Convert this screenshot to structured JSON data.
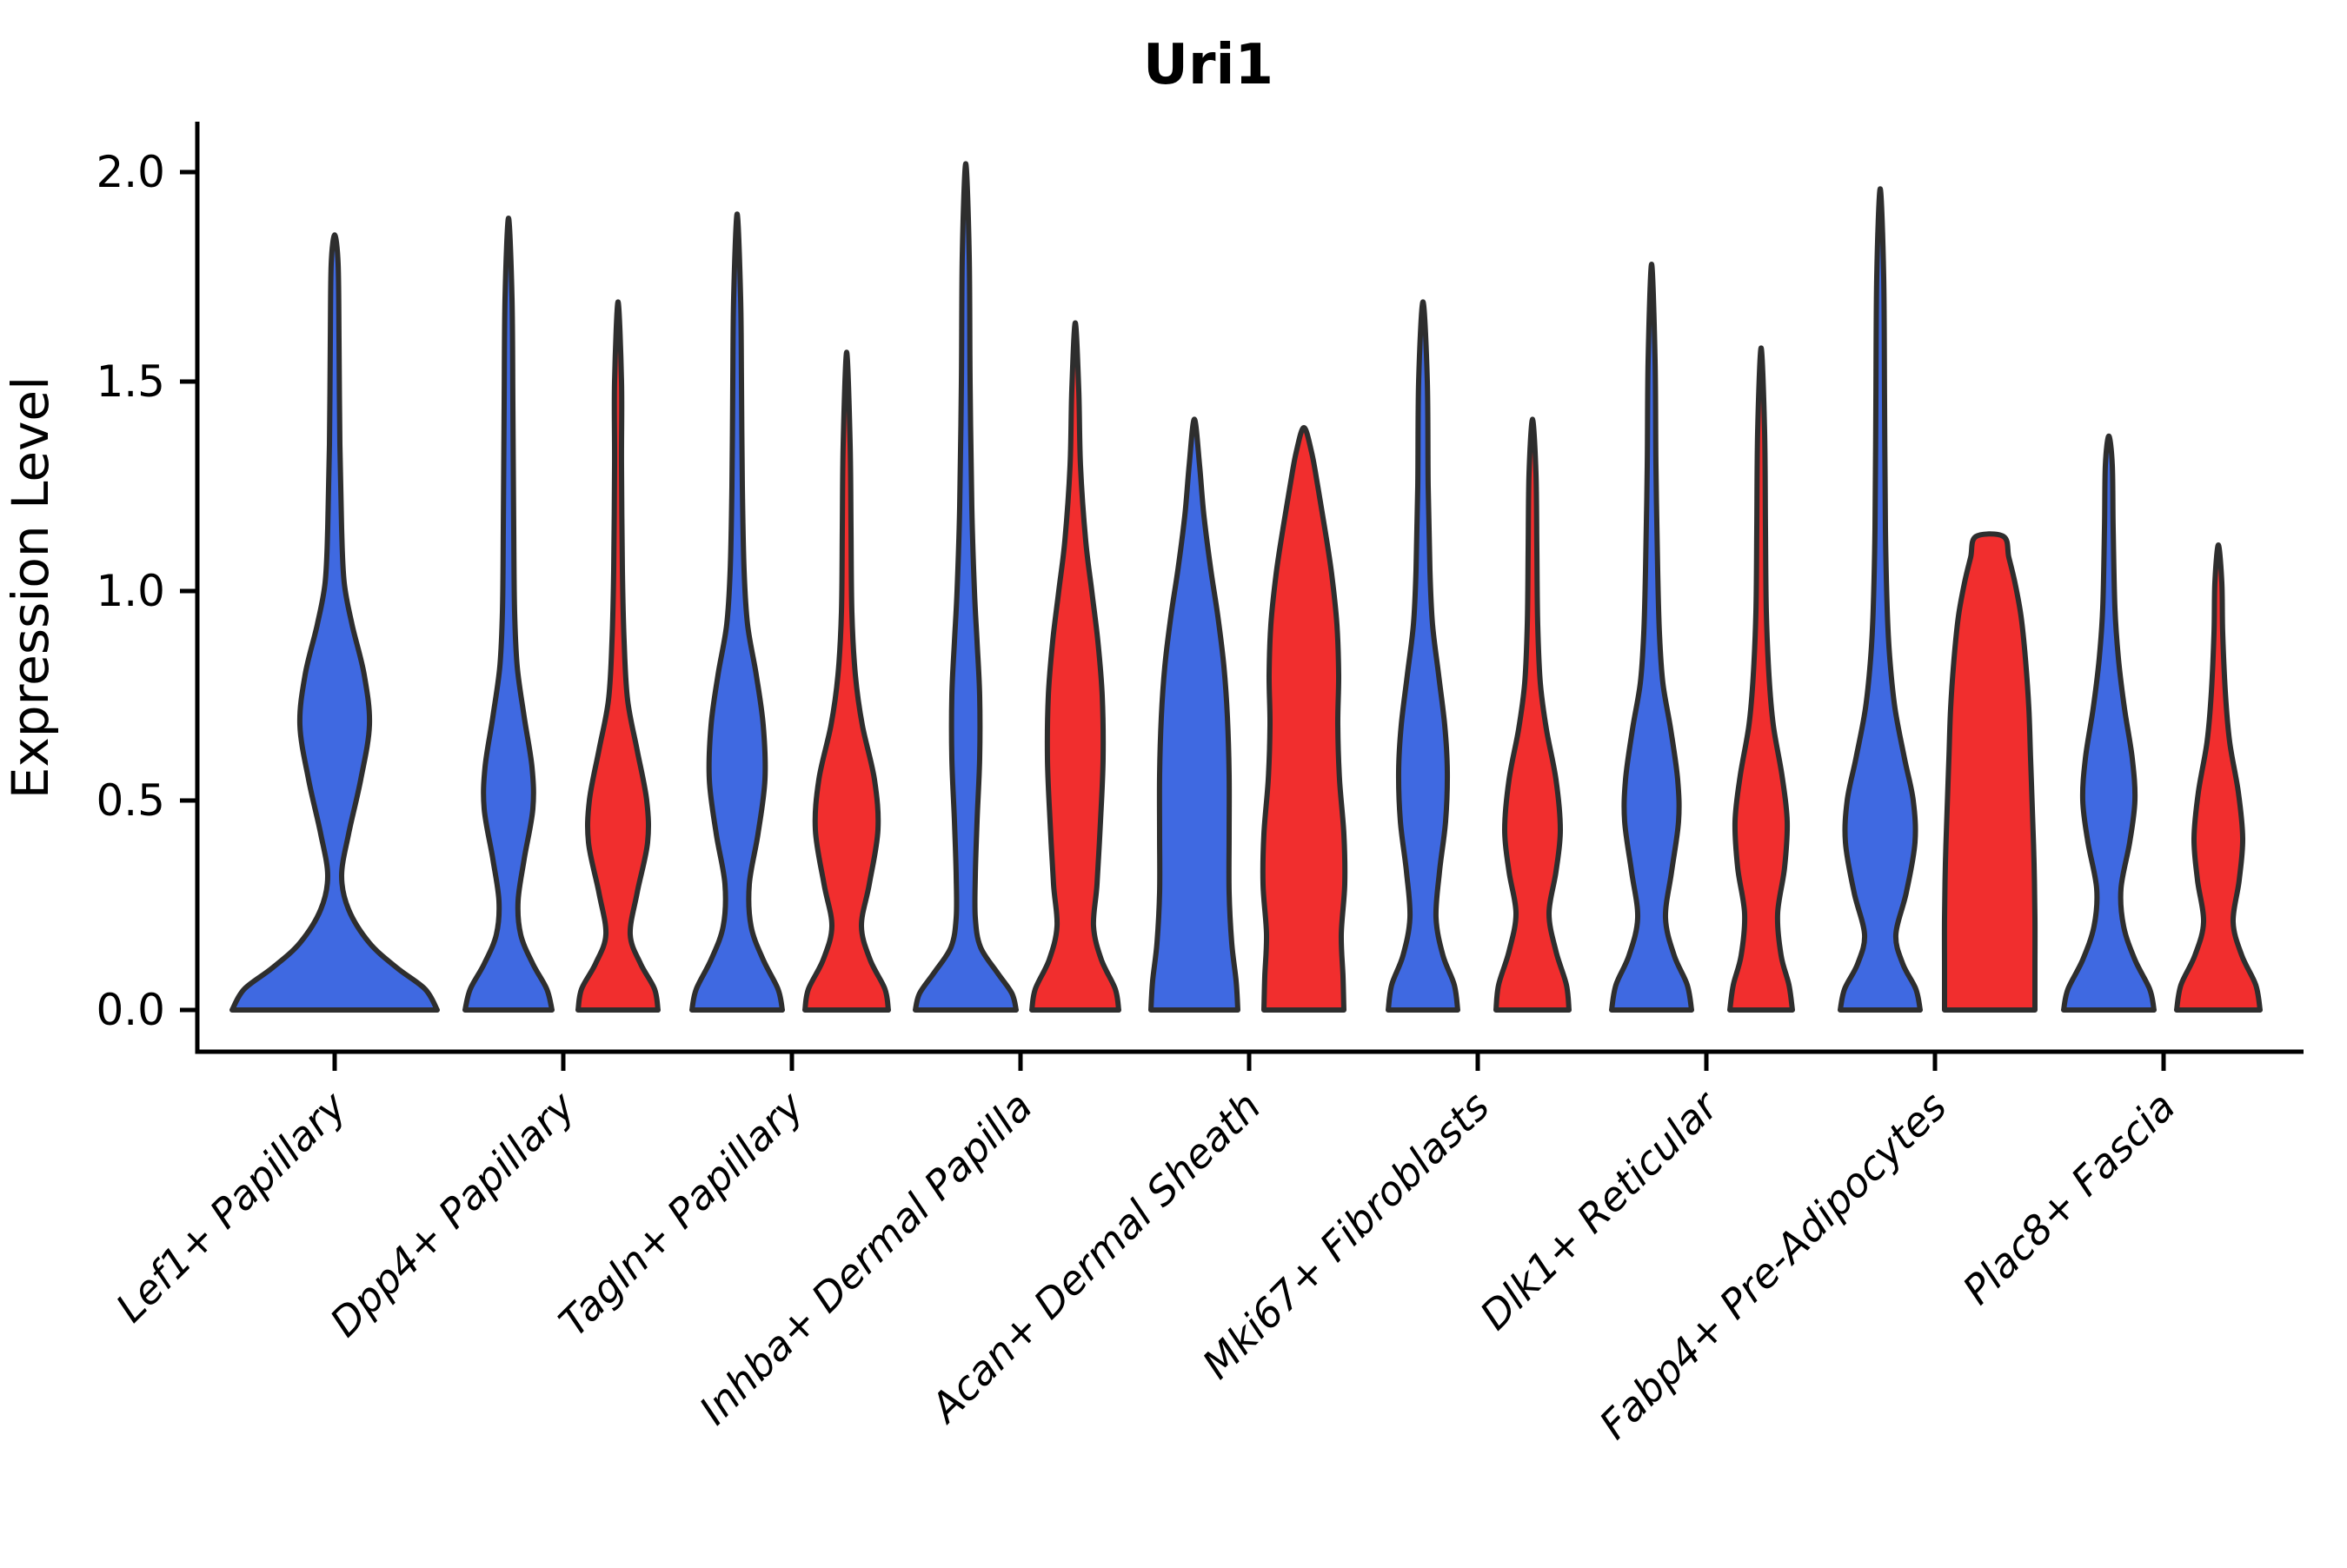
{
  "title": "Uri1",
  "axes": {
    "ylabel": "Expression Level",
    "ytick_labels": [
      "0.0",
      "0.5",
      "1.0",
      "1.5",
      "2.0"
    ],
    "ytick_values": [
      0.0,
      0.5,
      1.0,
      1.5,
      2.0
    ]
  },
  "colors": {
    "blue": "#3F69E1",
    "red": "#F12E2E",
    "outline": "#2E2E2E",
    "axis": "#000000"
  },
  "chart_data": {
    "type": "violin",
    "title": "Uri1",
    "xlabel": "",
    "ylabel": "Expression Level",
    "ylim": [
      -0.1,
      2.12
    ],
    "yticks": [
      0.0,
      0.5,
      1.0,
      1.5,
      2.0
    ],
    "grid": false,
    "legend": "none",
    "split_violins": true,
    "series_colors": {
      "blue": "#3F69E1",
      "red": "#F12E2E"
    },
    "categories": [
      "Lef1+ Papillary",
      "Dpp4+ Papillary",
      "Tagln+ Papillary",
      "Inhba+ Dermal Papilla",
      "Acan+ Dermal Sheath",
      "Mki67+ Fibroblasts",
      "Dlk1+ Reticular",
      "Fabp4+ Pre-Adipocytes",
      "Plac8+ Fascia"
    ],
    "violins": [
      {
        "category": "Lef1+ Papillary",
        "cat_index": 0,
        "group": "blue",
        "side": "center",
        "max_expression": 1.85,
        "cap": "point",
        "profile": [
          [
            0,
            118
          ],
          [
            0.05,
            104
          ],
          [
            0.1,
            72
          ],
          [
            0.16,
            40
          ],
          [
            0.24,
            16
          ],
          [
            0.32,
            8
          ],
          [
            0.42,
            16
          ],
          [
            0.55,
            30
          ],
          [
            0.68,
            40
          ],
          [
            0.8,
            34
          ],
          [
            0.92,
            20
          ],
          [
            1.02,
            11
          ],
          [
            1.15,
            8
          ],
          [
            1.35,
            6
          ],
          [
            1.6,
            5
          ],
          [
            1.78,
            4
          ]
        ]
      },
      {
        "category": "Dpp4+ Papillary",
        "cat_index": 1,
        "group": "blue",
        "side": "left",
        "max_expression": 1.89,
        "cap": "point",
        "profile": [
          [
            0,
            50
          ],
          [
            0.05,
            44
          ],
          [
            0.11,
            28
          ],
          [
            0.18,
            14
          ],
          [
            0.26,
            11
          ],
          [
            0.36,
            18
          ],
          [
            0.48,
            28
          ],
          [
            0.58,
            27
          ],
          [
            0.7,
            18
          ],
          [
            0.82,
            10
          ],
          [
            0.95,
            7
          ],
          [
            1.15,
            6
          ],
          [
            1.45,
            5
          ],
          [
            1.7,
            4
          ]
        ]
      },
      {
        "category": "Dpp4+ Papillary",
        "cat_index": 1,
        "group": "red",
        "side": "right",
        "max_expression": 1.69,
        "cap": "point",
        "profile": [
          [
            0,
            46
          ],
          [
            0.05,
            42
          ],
          [
            0.11,
            26
          ],
          [
            0.18,
            14
          ],
          [
            0.28,
            22
          ],
          [
            0.4,
            34
          ],
          [
            0.5,
            33
          ],
          [
            0.62,
            22
          ],
          [
            0.74,
            11
          ],
          [
            0.88,
            7
          ],
          [
            1.05,
            5
          ],
          [
            1.3,
            4
          ],
          [
            1.5,
            4
          ]
        ]
      },
      {
        "category": "Tagln+ Papillary",
        "cat_index": 2,
        "group": "blue",
        "side": "left",
        "max_expression": 1.9,
        "cap": "point",
        "profile": [
          [
            0,
            52
          ],
          [
            0.05,
            47
          ],
          [
            0.12,
            30
          ],
          [
            0.2,
            16
          ],
          [
            0.3,
            14
          ],
          [
            0.42,
            24
          ],
          [
            0.55,
            32
          ],
          [
            0.68,
            30
          ],
          [
            0.8,
            22
          ],
          [
            0.92,
            12
          ],
          [
            1.05,
            8
          ],
          [
            1.25,
            6
          ],
          [
            1.5,
            5
          ],
          [
            1.7,
            4
          ]
        ]
      },
      {
        "category": "Tagln+ Papillary",
        "cat_index": 2,
        "group": "red",
        "side": "right",
        "max_expression": 1.57,
        "cap": "point",
        "profile": [
          [
            0,
            48
          ],
          [
            0.05,
            44
          ],
          [
            0.12,
            27
          ],
          [
            0.2,
            17
          ],
          [
            0.3,
            26
          ],
          [
            0.43,
            36
          ],
          [
            0.55,
            32
          ],
          [
            0.68,
            18
          ],
          [
            0.8,
            10
          ],
          [
            0.95,
            6
          ],
          [
            1.15,
            5
          ],
          [
            1.35,
            4
          ]
        ]
      },
      {
        "category": "Inhba+ Dermal Papilla",
        "cat_index": 3,
        "group": "blue",
        "side": "left",
        "max_expression": 2.02,
        "cap": "point",
        "profile": [
          [
            0,
            58
          ],
          [
            0.04,
            53
          ],
          [
            0.09,
            36
          ],
          [
            0.15,
            17
          ],
          [
            0.22,
            11
          ],
          [
            0.32,
            11
          ],
          [
            0.45,
            13
          ],
          [
            0.6,
            16
          ],
          [
            0.75,
            16
          ],
          [
            0.88,
            13
          ],
          [
            1.0,
            10
          ],
          [
            1.2,
            7
          ],
          [
            1.5,
            5
          ],
          [
            1.8,
            4
          ]
        ]
      },
      {
        "category": "Inhba+ Dermal Papilla",
        "cat_index": 3,
        "group": "red",
        "side": "right",
        "max_expression": 1.64,
        "cap": "point",
        "profile": [
          [
            0,
            50
          ],
          [
            0.05,
            46
          ],
          [
            0.12,
            30
          ],
          [
            0.2,
            21
          ],
          [
            0.3,
            25
          ],
          [
            0.45,
            29
          ],
          [
            0.6,
            32
          ],
          [
            0.75,
            31
          ],
          [
            0.88,
            26
          ],
          [
            1.0,
            19
          ],
          [
            1.12,
            12
          ],
          [
            1.3,
            6
          ],
          [
            1.48,
            4
          ]
        ]
      },
      {
        "category": "Acan+ Dermal Sheath",
        "cat_index": 4,
        "group": "blue",
        "side": "left",
        "max_expression": 1.41,
        "cap": "point",
        "profile": [
          [
            0,
            50
          ],
          [
            0.07,
            48
          ],
          [
            0.16,
            43
          ],
          [
            0.28,
            40
          ],
          [
            0.42,
            40
          ],
          [
            0.56,
            40
          ],
          [
            0.7,
            38
          ],
          [
            0.82,
            34
          ],
          [
            0.94,
            27
          ],
          [
            1.05,
            19
          ],
          [
            1.18,
            11
          ],
          [
            1.3,
            6
          ]
        ]
      },
      {
        "category": "Acan+ Dermal Sheath",
        "cat_index": 4,
        "group": "red",
        "side": "right",
        "max_expression": 1.39,
        "cap": "point",
        "profile": [
          [
            0,
            46
          ],
          [
            0.08,
            45
          ],
          [
            0.18,
            43
          ],
          [
            0.3,
            47
          ],
          [
            0.42,
            46
          ],
          [
            0.55,
            41
          ],
          [
            0.68,
            39
          ],
          [
            0.8,
            40
          ],
          [
            0.92,
            38
          ],
          [
            1.04,
            32
          ],
          [
            1.15,
            24
          ],
          [
            1.25,
            16
          ],
          [
            1.33,
            9
          ]
        ]
      },
      {
        "category": "Mki67+ Fibroblasts",
        "cat_index": 5,
        "group": "blue",
        "side": "left",
        "max_expression": 1.69,
        "cap": "point",
        "profile": [
          [
            0,
            40
          ],
          [
            0.06,
            36
          ],
          [
            0.13,
            23
          ],
          [
            0.22,
            15
          ],
          [
            0.33,
            19
          ],
          [
            0.45,
            26
          ],
          [
            0.57,
            28
          ],
          [
            0.68,
            25
          ],
          [
            0.8,
            18
          ],
          [
            0.92,
            11
          ],
          [
            1.05,
            8
          ],
          [
            1.25,
            6
          ],
          [
            1.5,
            5
          ]
        ]
      },
      {
        "category": "Mki67+ Fibroblasts",
        "cat_index": 5,
        "group": "red",
        "side": "right",
        "max_expression": 1.41,
        "cap": "point",
        "profile": [
          [
            0,
            42
          ],
          [
            0.06,
            39
          ],
          [
            0.14,
            27
          ],
          [
            0.23,
            19
          ],
          [
            0.33,
            27
          ],
          [
            0.43,
            32
          ],
          [
            0.55,
            27
          ],
          [
            0.67,
            16
          ],
          [
            0.78,
            9
          ],
          [
            0.92,
            6
          ],
          [
            1.1,
            5
          ],
          [
            1.28,
            4
          ]
        ]
      },
      {
        "category": "Dlk1+ Reticular",
        "cat_index": 6,
        "group": "blue",
        "side": "left",
        "max_expression": 1.78,
        "cap": "point",
        "profile": [
          [
            0,
            46
          ],
          [
            0.06,
            41
          ],
          [
            0.13,
            26
          ],
          [
            0.22,
            16
          ],
          [
            0.33,
            23
          ],
          [
            0.45,
            31
          ],
          [
            0.55,
            30
          ],
          [
            0.67,
            22
          ],
          [
            0.78,
            13
          ],
          [
            0.9,
            9
          ],
          [
            1.05,
            7
          ],
          [
            1.3,
            5
          ],
          [
            1.55,
            4
          ]
        ]
      },
      {
        "category": "Dlk1+ Reticular",
        "cat_index": 6,
        "group": "red",
        "side": "right",
        "max_expression": 1.58,
        "cap": "point",
        "profile": [
          [
            0,
            36
          ],
          [
            0.06,
            32
          ],
          [
            0.13,
            23
          ],
          [
            0.23,
            19
          ],
          [
            0.34,
            27
          ],
          [
            0.45,
            30
          ],
          [
            0.56,
            24
          ],
          [
            0.68,
            14
          ],
          [
            0.8,
            9
          ],
          [
            0.95,
            6
          ],
          [
            1.15,
            5
          ],
          [
            1.38,
            4
          ]
        ]
      },
      {
        "category": "Fabp4+ Pre-Adipocytes",
        "cat_index": 7,
        "group": "blue",
        "side": "left",
        "max_expression": 1.96,
        "cap": "point",
        "profile": [
          [
            0,
            46
          ],
          [
            0.05,
            41
          ],
          [
            0.11,
            26
          ],
          [
            0.18,
            18
          ],
          [
            0.28,
            30
          ],
          [
            0.4,
            40
          ],
          [
            0.5,
            38
          ],
          [
            0.6,
            28
          ],
          [
            0.72,
            17
          ],
          [
            0.84,
            11
          ],
          [
            0.96,
            8
          ],
          [
            1.15,
            6
          ],
          [
            1.45,
            5
          ],
          [
            1.75,
            4
          ]
        ]
      },
      {
        "category": "Fabp4+ Pre-Adipocytes",
        "cat_index": 7,
        "group": "red",
        "side": "right",
        "max_expression": 1.13,
        "cap": "flat",
        "profile": [
          [
            0,
            52
          ],
          [
            0.1,
            52
          ],
          [
            0.22,
            52
          ],
          [
            0.35,
            51
          ],
          [
            0.48,
            49
          ],
          [
            0.6,
            47
          ],
          [
            0.72,
            45
          ],
          [
            0.84,
            41
          ],
          [
            0.94,
            36
          ],
          [
            1.02,
            29
          ],
          [
            1.08,
            22
          ],
          [
            1.13,
            16
          ]
        ]
      },
      {
        "category": "Plac8+ Fascia",
        "cat_index": 8,
        "group": "blue",
        "side": "left",
        "max_expression": 1.37,
        "cap": "point",
        "profile": [
          [
            0,
            52
          ],
          [
            0.05,
            47
          ],
          [
            0.12,
            30
          ],
          [
            0.2,
            17
          ],
          [
            0.29,
            14
          ],
          [
            0.4,
            24
          ],
          [
            0.5,
            30
          ],
          [
            0.6,
            27
          ],
          [
            0.72,
            18
          ],
          [
            0.84,
            11
          ],
          [
            0.96,
            7
          ],
          [
            1.15,
            5
          ],
          [
            1.3,
            4
          ]
        ]
      },
      {
        "category": "Plac8+ Fascia",
        "cat_index": 8,
        "group": "red",
        "side": "right",
        "max_expression": 1.11,
        "cap": "point",
        "profile": [
          [
            0,
            48
          ],
          [
            0.06,
            43
          ],
          [
            0.13,
            27
          ],
          [
            0.21,
            17
          ],
          [
            0.31,
            24
          ],
          [
            0.41,
            28
          ],
          [
            0.52,
            23
          ],
          [
            0.64,
            13
          ],
          [
            0.76,
            8
          ],
          [
            0.9,
            5
          ],
          [
            1.02,
            4
          ]
        ]
      }
    ]
  }
}
